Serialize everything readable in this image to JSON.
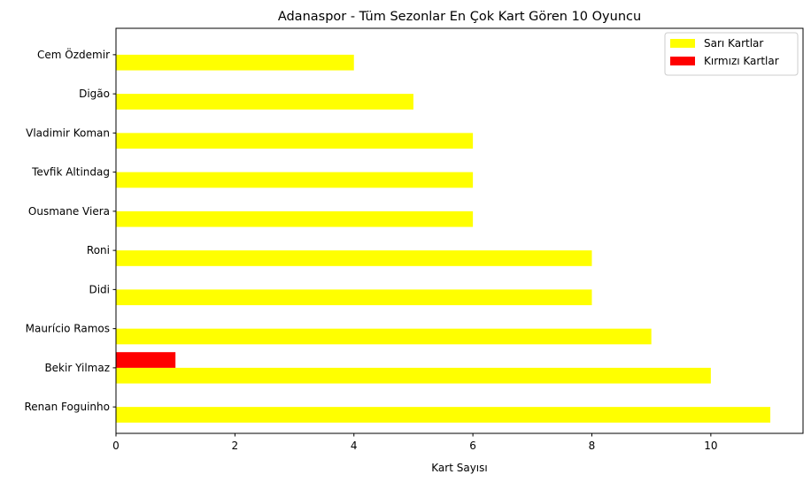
{
  "chart_data": {
    "type": "bar",
    "orientation": "horizontal",
    "title": "Adanaspor - Tüm Sezonlar En Çok Kart Gören 10 Oyuncu",
    "xlabel": "Kart Sayısı",
    "ylabel": "",
    "categories": [
      "Renan Foguinho",
      "Bekir Yilmaz",
      "Maurício Ramos",
      "Didi",
      "Roni",
      "Ousmane Viera",
      "Tevfik Altindag",
      "Vladimir Koman",
      "Digão",
      "Cem Özdemir"
    ],
    "series": [
      {
        "name": "Sarı Kartlar",
        "color": "#ffff00",
        "values": [
          11,
          10,
          9,
          8,
          8,
          6,
          6,
          6,
          5,
          4
        ]
      },
      {
        "name": "Kırmızı Kartlar",
        "color": "#ff0000",
        "values": [
          0,
          1,
          0,
          0,
          0,
          0,
          0,
          0,
          0,
          0
        ]
      }
    ],
    "xlim": [
      0,
      11.55
    ],
    "xticks": [
      "0",
      "2",
      "4",
      "6",
      "8",
      "10"
    ],
    "grid": false,
    "legend_position": "top-right"
  }
}
